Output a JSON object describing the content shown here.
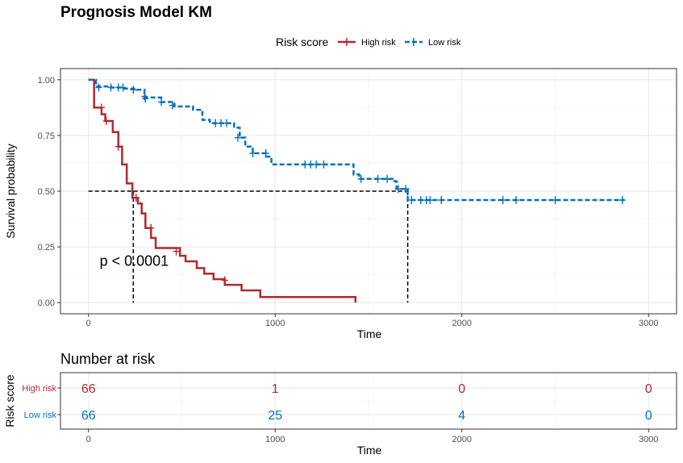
{
  "chart_data": [
    {
      "type": "line",
      "subtype": "kaplan-meier",
      "title": "Prognosis Model KM",
      "xlabel": "Time",
      "ylabel": "Survival probability",
      "xlim": [
        -150,
        3150
      ],
      "ylim": [
        -0.05,
        1.05
      ],
      "x_ticks": [
        0,
        1000,
        2000,
        3000
      ],
      "y_ticks": [
        0.0,
        0.25,
        0.5,
        0.75,
        1.0
      ],
      "y_tick_labels": [
        "0.00",
        "0.25",
        "0.50",
        "0.75",
        "1.00"
      ],
      "grid": true,
      "legend": {
        "title": "Risk score",
        "position": "top",
        "items": [
          "High risk",
          "Low risk"
        ]
      },
      "annotation": "p < 0.0001",
      "median_survival": {
        "y": 0.5,
        "x": [
          240,
          1710
        ]
      },
      "series": [
        {
          "name": "High risk",
          "color": "#B2292E",
          "style": "solid",
          "steps": [
            [
              0,
              1.0
            ],
            [
              30,
              0.875
            ],
            [
              70,
              0.845
            ],
            [
              90,
              0.815
            ],
            [
              130,
              0.765
            ],
            [
              160,
              0.7
            ],
            [
              180,
              0.62
            ],
            [
              205,
              0.535
            ],
            [
              235,
              0.47
            ],
            [
              265,
              0.445
            ],
            [
              285,
              0.4
            ],
            [
              305,
              0.335
            ],
            [
              335,
              0.29
            ],
            [
              360,
              0.245
            ],
            [
              430,
              0.245
            ],
            [
              490,
              0.21
            ],
            [
              520,
              0.185
            ],
            [
              580,
              0.155
            ],
            [
              620,
              0.13
            ],
            [
              670,
              0.105
            ],
            [
              730,
              0.08
            ],
            [
              820,
              0.055
            ],
            [
              920,
              0.025
            ],
            [
              1430,
              0.025
            ],
            [
              1430,
              0.0
            ]
          ],
          "censored": [
            [
              70,
              0.875
            ],
            [
              95,
              0.815
            ],
            [
              160,
              0.7
            ],
            [
              255,
              0.47
            ],
            [
              335,
              0.335
            ],
            [
              470,
              0.23
            ],
            [
              730,
              0.1
            ]
          ]
        },
        {
          "name": "Low risk",
          "color": "#0072BD",
          "style": "dashed",
          "steps": [
            [
              0,
              1.0
            ],
            [
              40,
              0.97
            ],
            [
              120,
              0.965
            ],
            [
              190,
              0.96
            ],
            [
              260,
              0.955
            ],
            [
              300,
              0.92
            ],
            [
              390,
              0.9
            ],
            [
              460,
              0.88
            ],
            [
              560,
              0.865
            ],
            [
              610,
              0.82
            ],
            [
              650,
              0.805
            ],
            [
              780,
              0.785
            ],
            [
              810,
              0.74
            ],
            [
              840,
              0.7
            ],
            [
              880,
              0.67
            ],
            [
              950,
              0.655
            ],
            [
              980,
              0.62
            ],
            [
              1400,
              0.62
            ],
            [
              1420,
              0.575
            ],
            [
              1450,
              0.555
            ],
            [
              1630,
              0.545
            ],
            [
              1650,
              0.51
            ],
            [
              1710,
              0.46
            ],
            [
              2870,
              0.46
            ]
          ],
          "censored": [
            [
              55,
              0.965
            ],
            [
              120,
              0.965
            ],
            [
              160,
              0.965
            ],
            [
              185,
              0.965
            ],
            [
              240,
              0.955
            ],
            [
              300,
              0.925
            ],
            [
              305,
              0.915
            ],
            [
              390,
              0.9
            ],
            [
              450,
              0.885
            ],
            [
              680,
              0.805
            ],
            [
              710,
              0.805
            ],
            [
              740,
              0.805
            ],
            [
              800,
              0.74
            ],
            [
              880,
              0.67
            ],
            [
              950,
              0.67
            ],
            [
              1160,
              0.62
            ],
            [
              1190,
              0.62
            ],
            [
              1220,
              0.62
            ],
            [
              1260,
              0.62
            ],
            [
              1460,
              0.555
            ],
            [
              1550,
              0.555
            ],
            [
              1600,
              0.555
            ],
            [
              1660,
              0.51
            ],
            [
              1700,
              0.51
            ],
            [
              1730,
              0.46
            ],
            [
              1780,
              0.46
            ],
            [
              1810,
              0.46
            ],
            [
              1830,
              0.46
            ],
            [
              1890,
              0.46
            ],
            [
              2220,
              0.46
            ],
            [
              2290,
              0.46
            ],
            [
              2500,
              0.46
            ],
            [
              2860,
              0.46
            ]
          ]
        }
      ]
    },
    {
      "type": "table",
      "title": "Number at risk",
      "xlabel": "Time",
      "ylabel": "Risk score",
      "x_ticks": [
        0,
        1000,
        2000,
        3000
      ],
      "rows": [
        {
          "name": "High risk",
          "color": "#B2292E",
          "values": [
            "66",
            "1",
            "0",
            "0"
          ]
        },
        {
          "name": "Low risk",
          "color": "#0072BD",
          "values": [
            "66",
            "25",
            "4",
            "0"
          ]
        }
      ]
    }
  ]
}
